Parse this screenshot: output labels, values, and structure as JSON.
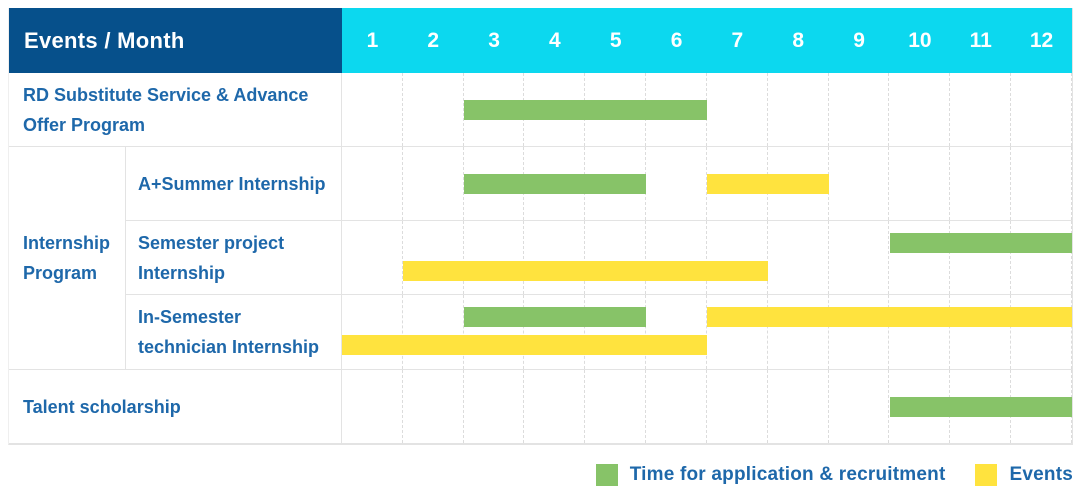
{
  "header": {
    "title": "Events / Month",
    "months": [
      "1",
      "2",
      "3",
      "4",
      "5",
      "6",
      "7",
      "8",
      "9",
      "10",
      "11",
      "12"
    ]
  },
  "colors": {
    "header_bg": "#06508B",
    "months_bg": "#0CD8EF",
    "label_text": "#1E68AA",
    "application": "#87C368",
    "events": "#FFE33E"
  },
  "legend": {
    "items": [
      {
        "key": "application",
        "label": "Time for application & recruitment",
        "color": "#87C368"
      },
      {
        "key": "events",
        "label": "Events",
        "color": "#FFE33E"
      }
    ]
  },
  "chart_data": {
    "type": "gantt",
    "title": "Events / Month",
    "x_categories": [
      "1",
      "2",
      "3",
      "4",
      "5",
      "6",
      "7",
      "8",
      "9",
      "10",
      "11",
      "12"
    ],
    "x_range": [
      1,
      12
    ],
    "bar_types": {
      "application": "Time for application & recruitment",
      "events": "Events"
    },
    "rows": [
      {
        "group": "",
        "label": "RD Substitute Service & Advance Offer Program",
        "bars": [
          {
            "kind": "application",
            "start_month": 3,
            "end_month": 6,
            "lane": "mid"
          }
        ]
      },
      {
        "group": "Internship Program",
        "label": "A+Summer Internship",
        "bars": [
          {
            "kind": "application",
            "start_month": 3,
            "end_month": 5,
            "lane": "mid"
          },
          {
            "kind": "events",
            "start_month": 7,
            "end_month": 8,
            "lane": "mid"
          }
        ]
      },
      {
        "group": "Internship Program",
        "label": "Semester project Internship",
        "bars": [
          {
            "kind": "application",
            "start_month": 10,
            "end_month": 12,
            "lane": "top"
          },
          {
            "kind": "events",
            "start_month": 2,
            "end_month": 7,
            "lane": "bottom"
          }
        ]
      },
      {
        "group": "Internship Program",
        "label": "In-Semester technician Internship",
        "bars": [
          {
            "kind": "application",
            "start_month": 3,
            "end_month": 5,
            "lane": "top"
          },
          {
            "kind": "events",
            "start_month": 7,
            "end_month": 12,
            "lane": "top"
          },
          {
            "kind": "events",
            "start_month": 1,
            "end_month": 6,
            "lane": "bottom"
          }
        ]
      },
      {
        "group": "",
        "label": "Talent scholarship",
        "bars": [
          {
            "kind": "application",
            "start_month": 10,
            "end_month": 12,
            "lane": "mid"
          }
        ]
      }
    ]
  }
}
